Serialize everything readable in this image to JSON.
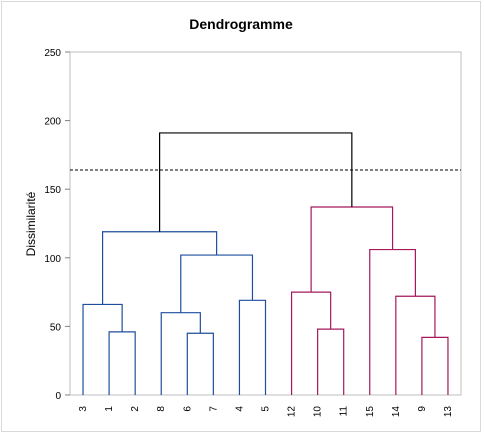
{
  "chart_data": {
    "type": "dendrogram",
    "title": "Dendrogramme",
    "ylabel": "Dissimilarité",
    "xlabel": "",
    "ylim": [
      0,
      250
    ],
    "yticks": [
      0,
      50,
      100,
      150,
      200,
      250
    ],
    "leaf_order": [
      "3",
      "1",
      "2",
      "8",
      "6",
      "7",
      "4",
      "5",
      "12",
      "10",
      "11",
      "15",
      "14",
      "9",
      "13"
    ],
    "cut_height": 164,
    "colors": {
      "left_cluster": "#1f4e9e",
      "right_cluster": "#a3195b",
      "root": "#000000",
      "cut_line": "#000000",
      "plot_border": "#bfbfbf"
    },
    "merges": [
      {
        "a": "1",
        "b": "2",
        "height": 46,
        "cluster": "left"
      },
      {
        "a": "3",
        "b": "1+2",
        "height": 66,
        "cluster": "left"
      },
      {
        "a": "6",
        "b": "7",
        "height": 45,
        "cluster": "left"
      },
      {
        "a": "8",
        "b": "6+7",
        "height": 60,
        "cluster": "left"
      },
      {
        "a": "4",
        "b": "5",
        "height": 69,
        "cluster": "left"
      },
      {
        "a": "8+6+7",
        "b": "4+5",
        "height": 102,
        "cluster": "left"
      },
      {
        "a": "3+1+2",
        "b": "8+6+7+4+5",
        "height": 119,
        "cluster": "left"
      },
      {
        "a": "10",
        "b": "11",
        "height": 48,
        "cluster": "right"
      },
      {
        "a": "12",
        "b": "10+11",
        "height": 75,
        "cluster": "right"
      },
      {
        "a": "9",
        "b": "13",
        "height": 42,
        "cluster": "right"
      },
      {
        "a": "14",
        "b": "9+13",
        "height": 72,
        "cluster": "right"
      },
      {
        "a": "15",
        "b": "14+9+13",
        "height": 106,
        "cluster": "right"
      },
      {
        "a": "12+10+11",
        "b": "15+14+9+13",
        "height": 137,
        "cluster": "right"
      },
      {
        "a": "left",
        "b": "right",
        "height": 191,
        "cluster": "root"
      }
    ]
  }
}
